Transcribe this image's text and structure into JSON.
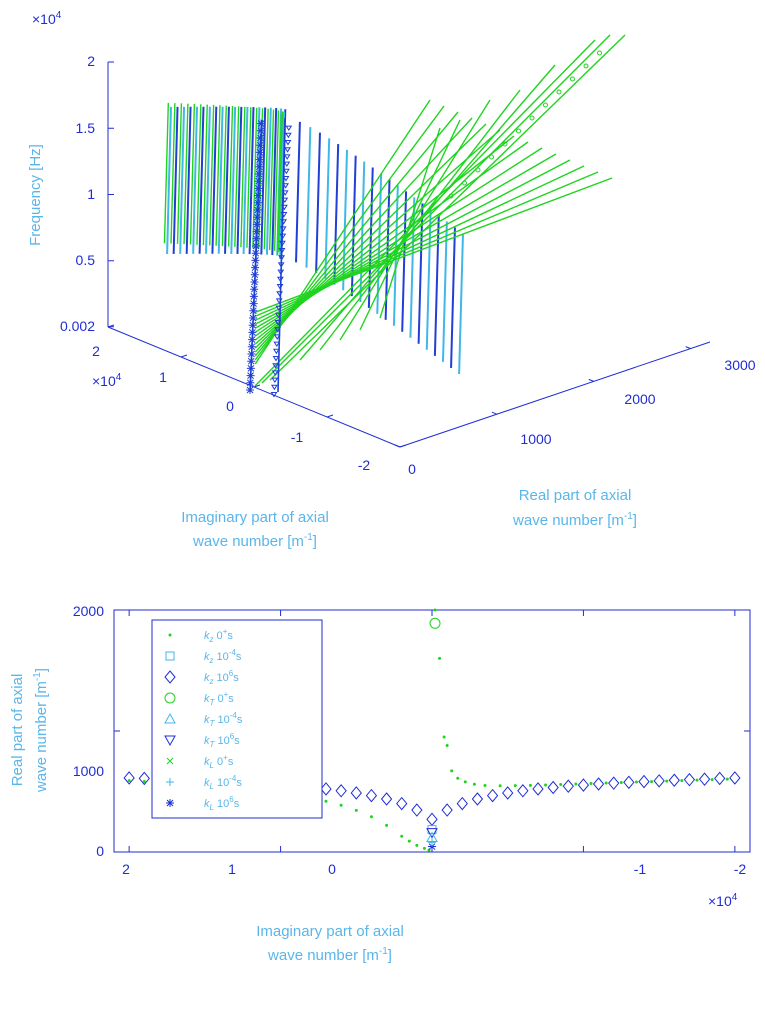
{
  "chart_data": [
    {
      "type": "line",
      "projection": "3d",
      "ylabel": "Frequency [Hz]",
      "xlabel_lines": [
        "Imaginary part of axial",
        "wave number [m",
        "]"
      ],
      "xlabel_sup": "-1",
      "rlabel_lines": [
        "Real part of axial",
        "wave number [m",
        "]"
      ],
      "rlabel_sup": "-1",
      "exponent_label": "×10",
      "exponent_power": "4",
      "z_ticks": [
        "0.002",
        "0.5",
        "1",
        "1.5",
        "2"
      ],
      "imag_ticks": [
        "2",
        "1",
        "0",
        "-1",
        "-2"
      ],
      "real_ticks": [
        "0",
        "1000",
        "2000",
        "3000"
      ],
      "series_colors": [
        "#1fd41f",
        "#3fb8e8",
        "#1f3fd6"
      ]
    },
    {
      "type": "scatter",
      "xlabel_lines": [
        "Imaginary part of axial",
        "wave number [m",
        "]"
      ],
      "xlabel_sup": "-1",
      "ylabel_lines": [
        "Real part of axial",
        "wave number [m",
        "]"
      ],
      "ylabel_sup": "-1",
      "exponent_label": "×10",
      "exponent_power": "4",
      "x_ticks": [
        "2",
        "1",
        "0",
        "-1",
        "-2"
      ],
      "y_ticks": [
        "0",
        "1000",
        "2000"
      ],
      "ylim": [
        0,
        2000
      ],
      "xlim": [
        2.1,
        -2.1
      ],
      "x_reversed": true,
      "legend_position": "top-left",
      "legend": [
        {
          "k": "k",
          "sub": "z",
          "a": "0",
          "sup": "+",
          "b": "s",
          "marker": "dot",
          "color": "#1fd41f"
        },
        {
          "k": "k",
          "sub": "z",
          "a": "10",
          "sup": "-4",
          "b": "s",
          "marker": "square",
          "color": "#3fb8e8"
        },
        {
          "k": "k",
          "sub": "z",
          "a": "10",
          "sup": "6",
          "b": "s",
          "marker": "diamond",
          "color": "#1f2dd6"
        },
        {
          "k": "k",
          "sub": "T",
          "a": "0",
          "sup": "+",
          "b": "s",
          "marker": "circle",
          "color": "#1fd41f"
        },
        {
          "k": "k",
          "sub": "T",
          "a": "10",
          "sup": "-4",
          "b": "s",
          "marker": "triangle-up",
          "color": "#3fb8e8"
        },
        {
          "k": "k",
          "sub": "T",
          "a": "10",
          "sup": "6",
          "b": "s",
          "marker": "triangle-down",
          "color": "#1f2dd6"
        },
        {
          "k": "k",
          "sub": "L",
          "a": "0",
          "sup": "+",
          "b": "s",
          "marker": "x",
          "color": "#1fd41f"
        },
        {
          "k": "k",
          "sub": "L",
          "a": "10",
          "sup": "-4",
          "b": "s",
          "marker": "plus",
          "color": "#3fb8e8"
        },
        {
          "k": "k",
          "sub": "L",
          "a": "10",
          "sup": "6",
          "b": "s",
          "marker": "star",
          "color": "#1f2dd6"
        }
      ],
      "series": [
        {
          "marker": "diamond",
          "color": "#1f2dd6",
          "x": [
            2.0,
            1.9,
            1.8,
            1.7,
            1.6,
            1.5,
            1.4,
            1.3,
            1.2,
            1.1,
            1.0,
            0.9,
            0.8,
            0.7,
            0.6,
            0.5,
            0.4,
            0.3,
            0.2,
            0.1,
            0.0,
            -0.1,
            -0.2,
            -0.3,
            -0.4,
            -0.5,
            -0.6,
            -0.7,
            -0.8,
            -0.9,
            -1.0,
            -1.1,
            -1.2,
            -1.3,
            -1.4,
            -1.5,
            -1.6,
            -1.7,
            -1.8,
            -1.9,
            -2.0
          ],
          "y": [
            612,
            608,
            602,
            598,
            593,
            588,
            582,
            576,
            569,
            562,
            553,
            544,
            533,
            521,
            506,
            488,
            466,
            438,
            400,
            347,
            270,
            347,
            400,
            438,
            466,
            488,
            506,
            521,
            533,
            544,
            553,
            562,
            569,
            576,
            582,
            588,
            593,
            598,
            602,
            608,
            612
          ]
        },
        {
          "marker": "square",
          "color": "#3fb8e8",
          "x": [
            0.0
          ],
          "y": [
            185
          ]
        },
        {
          "marker": "dot",
          "color": "#1fd41f",
          "x": [
            2.0,
            1.9,
            1.8,
            1.7,
            1.6,
            1.5,
            1.4,
            1.3,
            1.2,
            1.1,
            1.0,
            0.9,
            0.8,
            0.7,
            0.6,
            0.5,
            0.4,
            0.3,
            0.2,
            0.15,
            0.1,
            0.05,
            0.02
          ],
          "y": [
            590,
            583,
            576,
            568,
            560,
            551,
            541,
            530,
            517,
            503,
            487,
            468,
            446,
            419,
            386,
            344,
            291,
            220,
            130,
            90,
            55,
            30,
            15
          ]
        },
        {
          "marker": "dot",
          "color": "#1fd41f",
          "x": [
            -0.02,
            -0.05,
            -0.08,
            -0.1,
            -0.13,
            -0.17,
            -0.22,
            -0.28,
            -0.35,
            -0.45,
            -0.55,
            -0.65,
            -0.75,
            -0.85,
            -0.95,
            -1.05,
            -1.15,
            -1.25,
            -1.35,
            -1.45,
            -1.55,
            -1.65,
            -1.75,
            -1.85,
            -1.95
          ],
          "y": [
            2000,
            1600,
            950,
            880,
            670,
            610,
            580,
            560,
            550,
            548,
            549,
            551,
            554,
            558,
            562,
            566,
            570,
            574,
            578,
            582,
            586,
            590,
            594,
            598,
            602
          ]
        },
        {
          "marker": "circle",
          "color": "#1fd41f",
          "x": [
            -0.02
          ],
          "y": [
            1890
          ]
        },
        {
          "marker": "triangle-down",
          "color": "#1f2dd6",
          "x": [
            0.0
          ],
          "y": [
            160
          ]
        },
        {
          "marker": "triangle-up",
          "color": "#3fb8e8",
          "x": [
            0.0
          ],
          "y": [
            120
          ]
        },
        {
          "marker": "star",
          "color": "#1f2dd6",
          "x": [
            0.0
          ],
          "y": [
            45
          ]
        },
        {
          "marker": "plus",
          "color": "#3fb8e8",
          "x": [
            0.0
          ],
          "y": [
            80
          ]
        }
      ]
    }
  ]
}
